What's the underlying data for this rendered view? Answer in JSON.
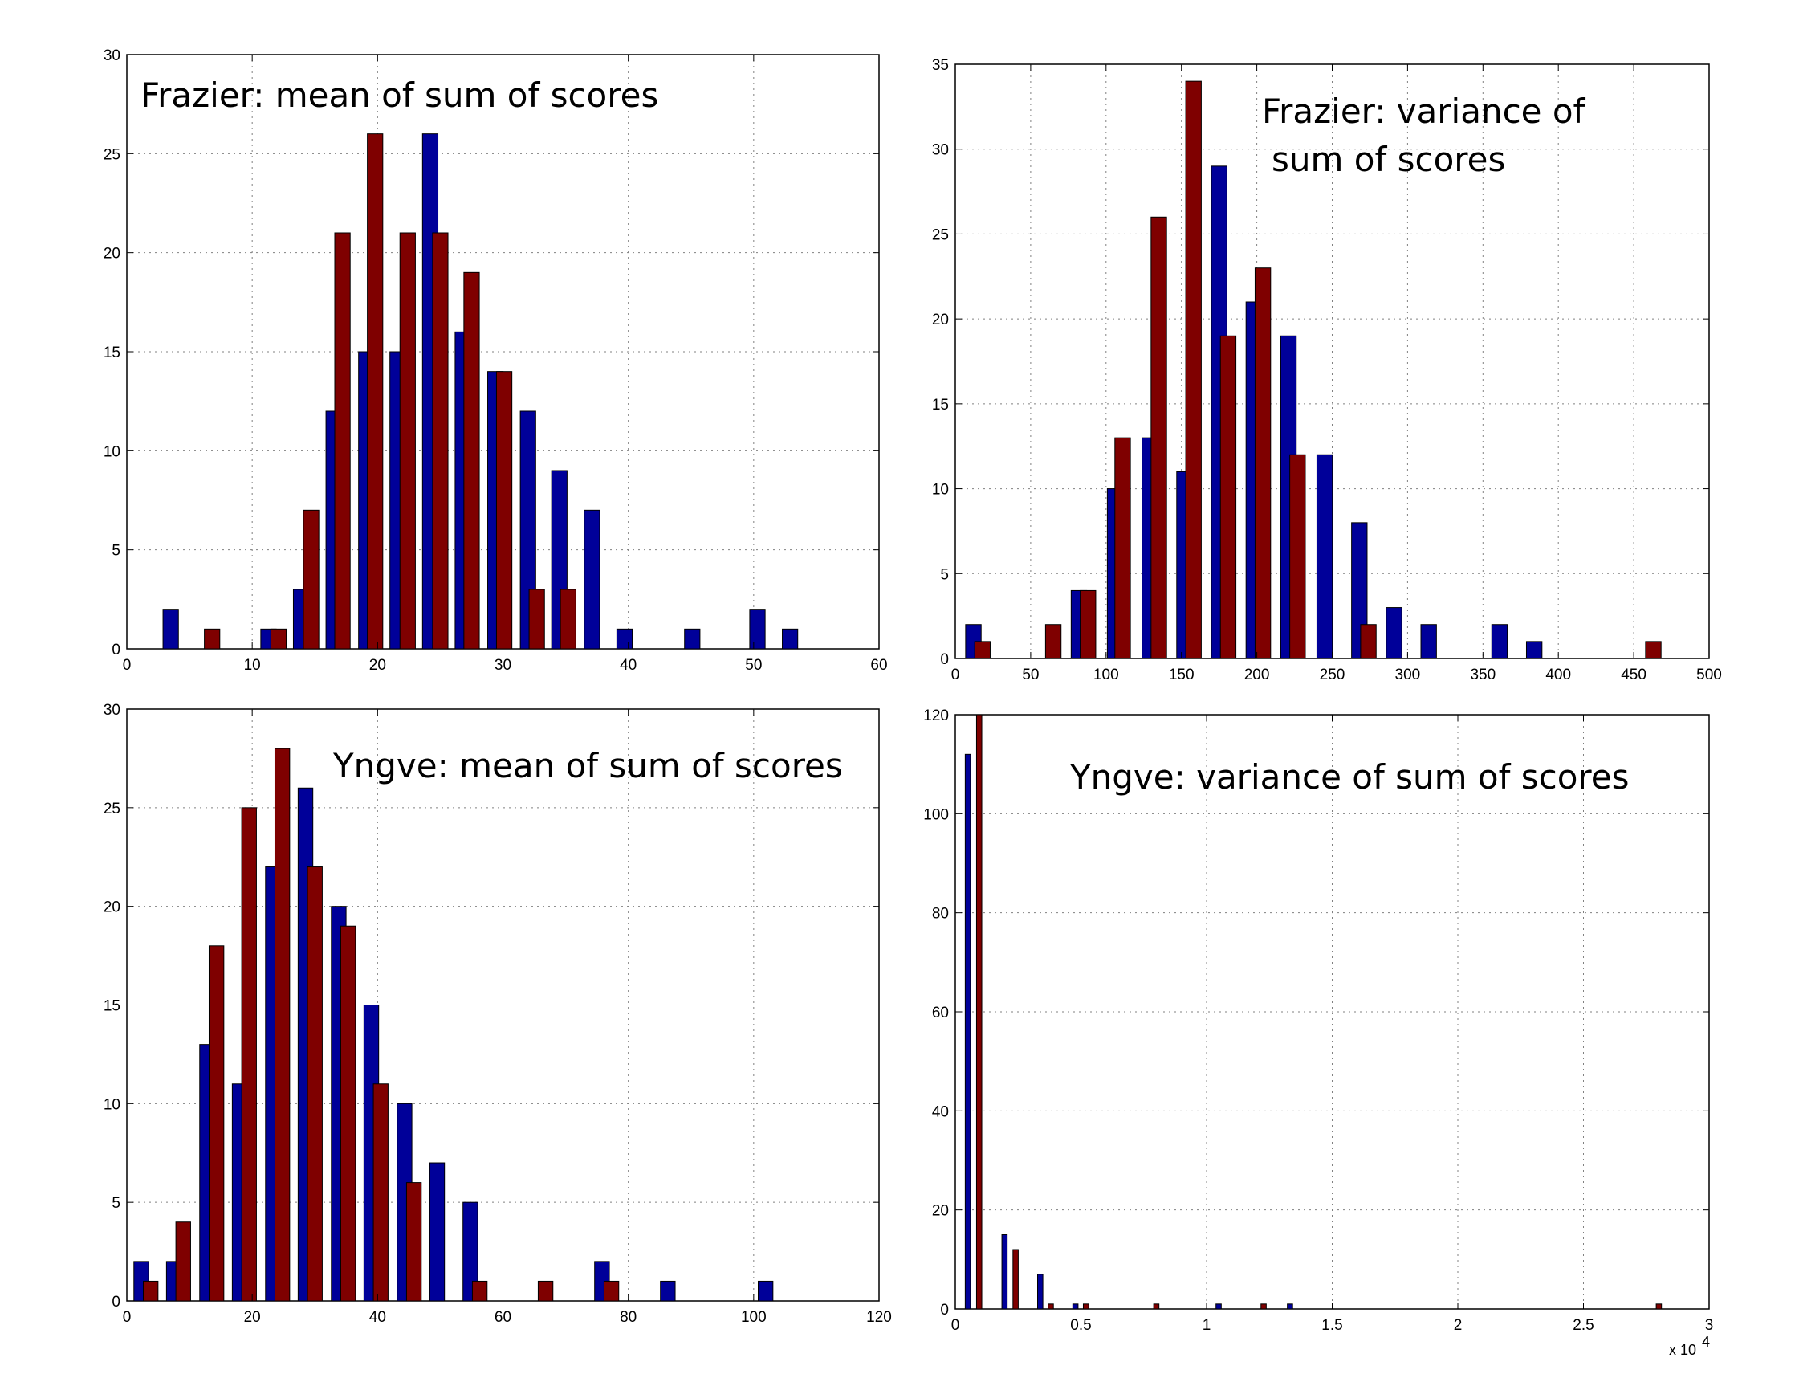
{
  "colors": {
    "series_a": "#000099",
    "series_b": "#7f0000"
  },
  "chart_data": [
    {
      "type": "bar",
      "title_lines": [
        "Frazier: mean of sum of scores"
      ],
      "title_anchor": "start",
      "xlim": [
        0,
        60
      ],
      "ylim": [
        0,
        30
      ],
      "xticks": [
        0,
        10,
        20,
        30,
        40,
        50,
        60
      ],
      "yticks": [
        0,
        5,
        10,
        15,
        20,
        25,
        30
      ],
      "x_exponent_label": "",
      "bin_width": 2.46,
      "series": [
        {
          "x": [
            3.5,
            11.3,
            13.9,
            16.5,
            19.1,
            21.6,
            24.2,
            26.8,
            29.4,
            32.0,
            34.5,
            37.1,
            39.7,
            45.1,
            50.3,
            52.9
          ],
          "values": [
            2,
            1,
            3,
            12,
            15,
            15,
            26,
            16,
            14,
            12,
            9,
            7,
            1,
            1,
            2,
            1
          ]
        },
        {
          "x": [
            6.8,
            12.1,
            14.7,
            17.2,
            19.8,
            22.4,
            25.0,
            27.5,
            30.1,
            32.7,
            35.2
          ],
          "values": [
            1,
            1,
            7,
            21,
            26,
            21,
            21,
            19,
            14,
            3,
            3
          ]
        }
      ]
    },
    {
      "type": "bar",
      "title_lines": [
        "Frazier: variance of",
        "sum of scores"
      ],
      "title_anchor": "start",
      "xlim": [
        0,
        500
      ],
      "ylim": [
        0,
        35
      ],
      "xticks": [
        0,
        50,
        100,
        150,
        200,
        250,
        300,
        350,
        400,
        450,
        500
      ],
      "yticks": [
        0,
        5,
        10,
        15,
        20,
        25,
        30,
        35
      ],
      "x_exponent_label": "",
      "bin_width": 20.6,
      "series": [
        {
          "x": [
            12,
            82,
            106,
            129,
            152,
            175,
            198,
            221,
            245,
            268,
            291,
            314,
            361,
            384
          ],
          "values": [
            2,
            4,
            10,
            13,
            11,
            29,
            21,
            19,
            12,
            8,
            3,
            2,
            2,
            1
          ]
        },
        {
          "x": [
            18,
            65,
            88,
            111,
            135,
            158,
            181,
            204,
            227,
            274,
            463
          ],
          "values": [
            1,
            2,
            4,
            13,
            26,
            34,
            19,
            23,
            12,
            2,
            1
          ]
        }
      ]
    },
    {
      "type": "bar",
      "title_lines": [
        "Yngve: mean of sum of scores"
      ],
      "title_anchor": "start",
      "xlim": [
        0,
        120
      ],
      "ylim": [
        0,
        30
      ],
      "xticks": [
        0,
        20,
        40,
        60,
        80,
        100,
        120
      ],
      "yticks": [
        0,
        5,
        10,
        15,
        20,
        25,
        30
      ],
      "x_exponent_label": "",
      "bin_width": 4.7,
      "series": [
        {
          "x": [
            2.3,
            7.5,
            12.8,
            18.0,
            23.3,
            28.5,
            33.8,
            39.0,
            44.3,
            49.5,
            54.8,
            75.8,
            86.3,
            101.9
          ],
          "values": [
            2,
            2,
            13,
            11,
            22,
            26,
            20,
            15,
            10,
            7,
            5,
            2,
            1,
            1
          ]
        },
        {
          "x": [
            3.8,
            9.0,
            14.3,
            19.5,
            24.8,
            30.0,
            35.3,
            40.5,
            45.8,
            56.3,
            66.8,
            77.3
          ],
          "values": [
            1,
            4,
            18,
            25,
            28,
            22,
            19,
            11,
            6,
            1,
            1,
            1
          ]
        }
      ]
    },
    {
      "type": "bar",
      "title_lines": [
        "Yngve: variance of sum of scores"
      ],
      "title_anchor": "start",
      "xlim": [
        0,
        3
      ],
      "ylim": [
        0,
        120
      ],
      "xticks": [
        0,
        0.5,
        1,
        1.5,
        2,
        2.5,
        3
      ],
      "yticks": [
        0,
        20,
        40,
        60,
        80,
        100,
        120
      ],
      "x_exponent_label": "x 10",
      "x_exponent_power": "4",
      "bin_width": 0.042,
      "series": [
        {
          "x": [
            0.05,
            0.196,
            0.338,
            0.478,
            1.048,
            1.332
          ],
          "values": [
            112,
            15,
            7,
            1,
            1,
            1
          ]
        },
        {
          "x": [
            0.095,
            0.24,
            0.38,
            0.52,
            0.8,
            1.227,
            2.8
          ],
          "values": [
            120,
            12,
            1,
            1,
            1,
            1,
            1
          ]
        }
      ]
    }
  ]
}
